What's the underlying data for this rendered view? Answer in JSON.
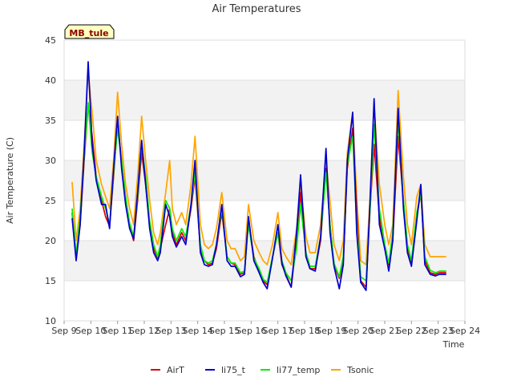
{
  "chart_data": {
    "type": "line",
    "title": "Air Temperatures",
    "xlabel": "Time",
    "ylabel": "Air Temperature (C)",
    "site_label": "MB_tule",
    "ylim": [
      10,
      45
    ],
    "xlim": [
      "Sep 9",
      "Sep 24"
    ],
    "y_ticks": [
      10,
      15,
      20,
      25,
      30,
      35,
      40,
      45
    ],
    "x_ticks": [
      "Sep 9",
      "Sep 10",
      "Sep 11",
      "Sep 12",
      "Sep 13",
      "Sep 14",
      "Sep 15",
      "Sep 16",
      "Sep 17",
      "Sep 18",
      "Sep 19",
      "Sep 20",
      "Sep 21",
      "Sep 22",
      "Sep 23",
      "Sep 24"
    ],
    "grid": "horizontal alternating bands",
    "legend_position": "bottom",
    "series_colors": {
      "AirT": "#dd0000",
      "li75_t": "#0000cc",
      "li77_temp": "#00ee00",
      "Tsonic": "#ffa500"
    },
    "series": [
      {
        "name": "AirT",
        "x": [
          9.3,
          9.45,
          9.6,
          9.75,
          9.9,
          10.05,
          10.2,
          10.4,
          10.55,
          10.7,
          10.85,
          11.0,
          11.15,
          11.3,
          11.45,
          11.6,
          11.75,
          11.9,
          12.05,
          12.2,
          12.35,
          12.5,
          12.6,
          12.8,
          12.95,
          13.05,
          13.2,
          13.4,
          13.55,
          13.75,
          13.9,
          14.1,
          14.25,
          14.4,
          14.55,
          14.7,
          14.9,
          15.1,
          15.25,
          15.4,
          15.6,
          15.75,
          15.9,
          16.1,
          16.3,
          16.45,
          16.6,
          16.8,
          17.0,
          17.15,
          17.3,
          17.5,
          17.7,
          17.85,
          18.05,
          18.2,
          18.4,
          18.6,
          18.8,
          18.95,
          19.1,
          19.3,
          19.45,
          19.6,
          19.8,
          19.95,
          20.1,
          20.3,
          20.45,
          20.6,
          20.8,
          21.0,
          21.15,
          21.3,
          21.5,
          21.7,
          21.85,
          22.0,
          22.2,
          22.35,
          22.5,
          22.7,
          22.9,
          23.05,
          23.2,
          23.3
        ],
        "y": [
          23.5,
          18,
          22,
          30,
          37,
          33,
          28,
          25,
          23,
          21.8,
          28,
          34.5,
          30,
          25,
          21.8,
          20,
          25,
          31,
          27,
          22,
          19,
          17.8,
          19,
          22,
          24,
          21,
          19.5,
          21,
          20,
          24,
          28,
          19,
          17.5,
          17,
          17.2,
          19,
          23.5,
          18,
          17.2,
          17,
          15.8,
          16,
          22.5,
          18,
          16.2,
          15,
          14.5,
          18,
          21,
          17,
          15.8,
          14.2,
          20,
          26,
          18,
          16.5,
          16.5,
          20,
          29,
          22,
          17,
          15.3,
          17.5,
          29,
          34,
          24,
          15,
          14.2,
          24,
          32,
          23,
          19,
          17,
          20,
          33,
          25,
          19,
          17,
          23,
          26,
          17.5,
          16,
          15.8,
          16,
          16,
          16
        ]
      },
      {
        "name": "li75_t",
        "x": [
          9.3,
          9.45,
          9.6,
          9.75,
          9.9,
          10.05,
          10.2,
          10.4,
          10.55,
          10.7,
          10.85,
          11.0,
          11.15,
          11.3,
          11.45,
          11.6,
          11.75,
          11.9,
          12.05,
          12.2,
          12.35,
          12.5,
          12.6,
          12.8,
          12.95,
          13.05,
          13.2,
          13.4,
          13.55,
          13.75,
          13.9,
          14.1,
          14.25,
          14.4,
          14.55,
          14.7,
          14.9,
          15.1,
          15.25,
          15.4,
          15.6,
          15.75,
          15.9,
          16.1,
          16.3,
          16.45,
          16.6,
          16.8,
          17.0,
          17.15,
          17.3,
          17.5,
          17.7,
          17.85,
          18.05,
          18.2,
          18.4,
          18.6,
          18.8,
          18.95,
          19.1,
          19.3,
          19.45,
          19.6,
          19.8,
          19.95,
          20.1,
          20.3,
          20.45,
          20.6,
          20.8,
          21.0,
          21.15,
          21.3,
          21.5,
          21.7,
          21.85,
          22.0,
          22.2,
          22.35,
          22.5,
          22.7,
          22.9,
          23.05,
          23.2,
          23.3
        ],
        "y": [
          22.8,
          17.5,
          22,
          31,
          42.3,
          32,
          27.5,
          24.5,
          24.5,
          21.5,
          29,
          35.5,
          29,
          24.5,
          21.5,
          20.2,
          26,
          32.5,
          27,
          21.5,
          18.5,
          17.5,
          18.5,
          24.5,
          23,
          20.5,
          19.2,
          20.5,
          19.5,
          24.5,
          30,
          18.5,
          17,
          16.8,
          17,
          19.5,
          24.5,
          17.5,
          16.8,
          16.8,
          15.5,
          15.8,
          23,
          17.5,
          16,
          14.8,
          14,
          17.8,
          22,
          17.2,
          15.6,
          14.2,
          21,
          28.2,
          18,
          16.5,
          16.2,
          20.5,
          31.5,
          21,
          16.8,
          14,
          17,
          30,
          36,
          21,
          14.8,
          13.8,
          25,
          37.7,
          22,
          19,
          16.2,
          20,
          36.5,
          24,
          18.5,
          16.8,
          22.5,
          27,
          17,
          15.8,
          15.6,
          15.8,
          15.8,
          15.8
        ]
      },
      {
        "name": "li77_temp",
        "x": [
          9.3,
          9.45,
          9.6,
          9.75,
          9.9,
          10.05,
          10.2,
          10.4,
          10.55,
          10.7,
          10.85,
          11.0,
          11.15,
          11.3,
          11.45,
          11.6,
          11.75,
          11.9,
          12.05,
          12.2,
          12.35,
          12.5,
          12.6,
          12.8,
          12.95,
          13.05,
          13.2,
          13.4,
          13.55,
          13.75,
          13.9,
          14.1,
          14.25,
          14.4,
          14.55,
          14.7,
          14.9,
          15.1,
          15.25,
          15.4,
          15.6,
          15.75,
          15.9,
          16.1,
          16.3,
          16.45,
          16.6,
          16.8,
          17.0,
          17.15,
          17.3,
          17.5,
          17.7,
          17.85,
          18.05,
          18.2,
          18.4,
          18.6,
          18.8,
          18.95,
          19.1,
          19.3,
          19.45,
          19.6,
          19.8,
          19.95,
          20.1,
          20.3,
          20.45,
          20.6,
          20.8,
          21.0,
          21.15,
          21.3,
          21.5,
          21.7,
          21.85,
          22.0,
          22.2,
          22.35,
          22.5,
          22.7,
          22.9,
          23.05,
          23.2,
          23.3
        ],
        "y": [
          24,
          18.2,
          23,
          30.5,
          37.2,
          31,
          28,
          25.5,
          24,
          22,
          28.5,
          34,
          30,
          25.5,
          22.2,
          20.5,
          25.5,
          32,
          28,
          22.5,
          19.5,
          18,
          19.5,
          25,
          24,
          21.5,
          20,
          21.5,
          20.5,
          24.5,
          28.5,
          19.5,
          17.5,
          17.2,
          17.5,
          19.5,
          24,
          18,
          17.2,
          17.2,
          16,
          16.2,
          22,
          17.8,
          16.5,
          15.2,
          14.8,
          18,
          21,
          17.5,
          16,
          15,
          19,
          24.5,
          18.5,
          16.8,
          16.8,
          20.5,
          28.5,
          22,
          17.2,
          15.5,
          18,
          29.5,
          33,
          22,
          15.5,
          15,
          24,
          34.5,
          24,
          19.5,
          17.2,
          21,
          35,
          25,
          19.5,
          17.5,
          23.5,
          26,
          18,
          16.3,
          16,
          16.2,
          16.2,
          16.2
        ]
      },
      {
        "name": "Tsonic",
        "x": [
          9.3,
          9.45,
          9.6,
          9.75,
          9.9,
          10.05,
          10.2,
          10.4,
          10.55,
          10.7,
          10.85,
          11.0,
          11.15,
          11.3,
          11.45,
          11.6,
          11.75,
          11.9,
          12.05,
          12.2,
          12.35,
          12.5,
          12.6,
          12.8,
          12.95,
          13.05,
          13.2,
          13.4,
          13.55,
          13.75,
          13.9,
          14.1,
          14.25,
          14.4,
          14.55,
          14.7,
          14.9,
          15.1,
          15.25,
          15.4,
          15.6,
          15.75,
          15.9,
          16.1,
          16.3,
          16.45,
          16.6,
          16.8,
          17.0,
          17.15,
          17.3,
          17.5,
          17.7,
          17.85,
          18.05,
          18.2,
          18.4,
          18.6,
          18.8,
          18.95,
          19.1,
          19.3,
          19.45,
          19.6,
          19.8,
          19.95,
          20.1,
          20.3,
          20.45,
          20.6,
          20.8,
          21.0,
          21.15,
          21.3,
          21.5,
          21.7,
          21.85,
          22.0,
          22.2,
          22.35,
          22.5,
          22.7,
          22.9,
          23.05,
          23.2,
          23.3
        ],
        "y": [
          27.3,
          20,
          24,
          32,
          41,
          36,
          30,
          27,
          25.5,
          24,
          30,
          38.5,
          32,
          27,
          24,
          22,
          28,
          35.5,
          30,
          25,
          21,
          19.5,
          21,
          26,
          30,
          24,
          22,
          23.5,
          22,
          27,
          33,
          22,
          19.5,
          19,
          19.5,
          21.5,
          26,
          20,
          19,
          19,
          17.5,
          18,
          24.5,
          20,
          18.5,
          17.5,
          17,
          19.5,
          23.5,
          19,
          18,
          17,
          21.5,
          27,
          20.5,
          18.5,
          18.5,
          22,
          30,
          25,
          19.5,
          17.5,
          20,
          31,
          36,
          25.5,
          17.5,
          17,
          25.5,
          37,
          27,
          22,
          19.5,
          22,
          38.7,
          28,
          22,
          19.5,
          25.5,
          27,
          19.5,
          18,
          18,
          18,
          18,
          18
        ]
      }
    ]
  }
}
